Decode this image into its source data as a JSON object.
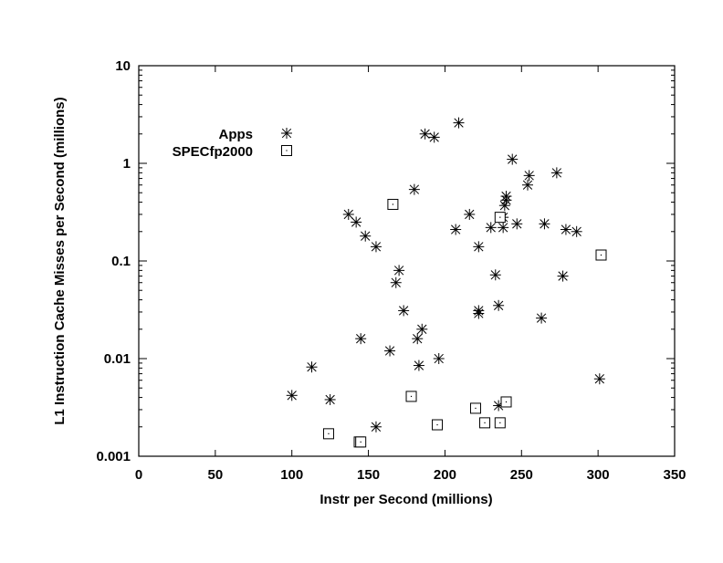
{
  "chart_data": {
    "type": "scatter",
    "title": "",
    "xlabel": "Instr per Second (millions)",
    "ylabel": "L1 Instruction Cache Misses per Second (millions)",
    "xlim": [
      0,
      350
    ],
    "ylim": [
      0.001,
      10
    ],
    "yscale": "log",
    "grid": false,
    "legend_position": "top-left",
    "x_ticks": [
      "0",
      "50",
      "100",
      "150",
      "200",
      "250",
      "300",
      "350"
    ],
    "y_ticks": [
      "0.001",
      "0.01",
      "0.1",
      "1",
      "10"
    ],
    "series": [
      {
        "name": "Apps",
        "marker": "asterisk",
        "points": [
          [
            209,
            2.6
          ],
          [
            187,
            2.0
          ],
          [
            193,
            1.85
          ],
          [
            244,
            1.1
          ],
          [
            255,
            0.75
          ],
          [
            273,
            0.8
          ],
          [
            254,
            0.6
          ],
          [
            180,
            0.54
          ],
          [
            240,
            0.46
          ],
          [
            240,
            0.42
          ],
          [
            239,
            0.37
          ],
          [
            137,
            0.3
          ],
          [
            142,
            0.25
          ],
          [
            216,
            0.3
          ],
          [
            238,
            0.28
          ],
          [
            247,
            0.24
          ],
          [
            265,
            0.24
          ],
          [
            279,
            0.21
          ],
          [
            286,
            0.2
          ],
          [
            207,
            0.21
          ],
          [
            230,
            0.22
          ],
          [
            238,
            0.22
          ],
          [
            148,
            0.18
          ],
          [
            155,
            0.14
          ],
          [
            222,
            0.14
          ],
          [
            170,
            0.08
          ],
          [
            168,
            0.06
          ],
          [
            233,
            0.072
          ],
          [
            277,
            0.07
          ],
          [
            173,
            0.031
          ],
          [
            222,
            0.029
          ],
          [
            222,
            0.031
          ],
          [
            235,
            0.035
          ],
          [
            263,
            0.026
          ],
          [
            185,
            0.02
          ],
          [
            182,
            0.016
          ],
          [
            145,
            0.016
          ],
          [
            164,
            0.012
          ],
          [
            196,
            0.01
          ],
          [
            183,
            0.0085
          ],
          [
            113,
            0.0082
          ],
          [
            301,
            0.0062
          ],
          [
            100,
            0.0042
          ],
          [
            125,
            0.0038
          ],
          [
            235,
            0.0033
          ],
          [
            155,
            0.002
          ]
        ]
      },
      {
        "name": "SPECfp2000",
        "marker": "square",
        "points": [
          [
            166,
            0.38
          ],
          [
            236,
            0.28
          ],
          [
            302,
            0.115
          ],
          [
            178,
            0.0041
          ],
          [
            240,
            0.0036
          ],
          [
            220,
            0.0031
          ],
          [
            195,
            0.0021
          ],
          [
            226,
            0.0022
          ],
          [
            236,
            0.0022
          ],
          [
            124,
            0.0017
          ],
          [
            144,
            0.0014
          ],
          [
            145,
            0.0014
          ]
        ]
      }
    ]
  }
}
